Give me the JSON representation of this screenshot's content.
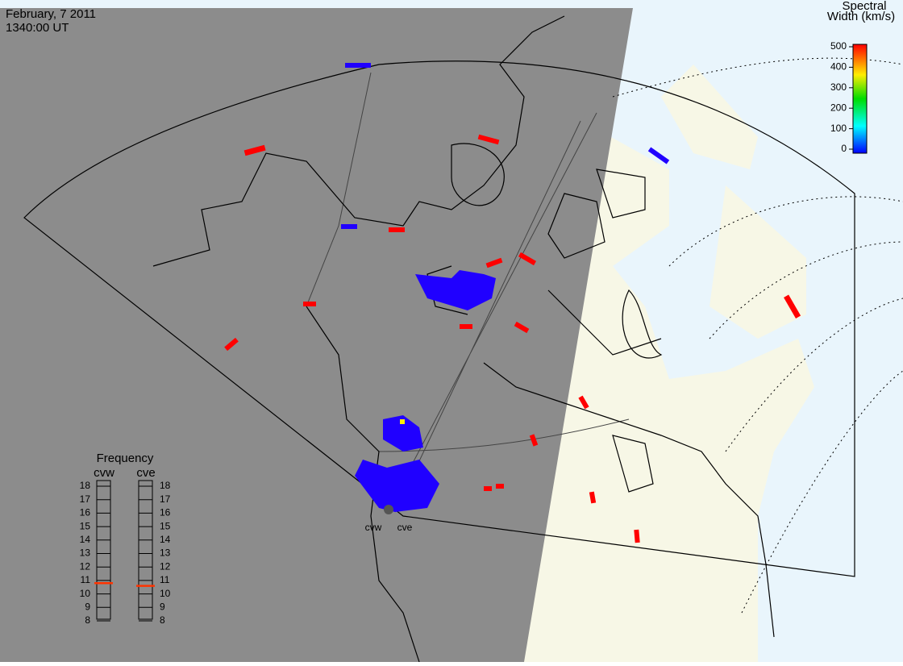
{
  "header": {
    "date": "February, 7 2011",
    "time": "1340:00 UT"
  },
  "colorbar": {
    "title_lines": [
      "Spectral",
      "Width (km/s)"
    ],
    "ticks": [
      0,
      100,
      200,
      300,
      400,
      500
    ],
    "range": [
      0,
      500
    ]
  },
  "frequency": {
    "title": "Frequency",
    "range": [
      8,
      18
    ],
    "ticks": [
      8,
      9,
      10,
      11,
      12,
      13,
      14,
      15,
      16,
      17,
      18
    ],
    "radars": [
      {
        "name": "cvw",
        "value": 10.8
      },
      {
        "name": "cve",
        "value": 10.6
      }
    ]
  },
  "stations": [
    "cvw",
    "cve"
  ]
}
